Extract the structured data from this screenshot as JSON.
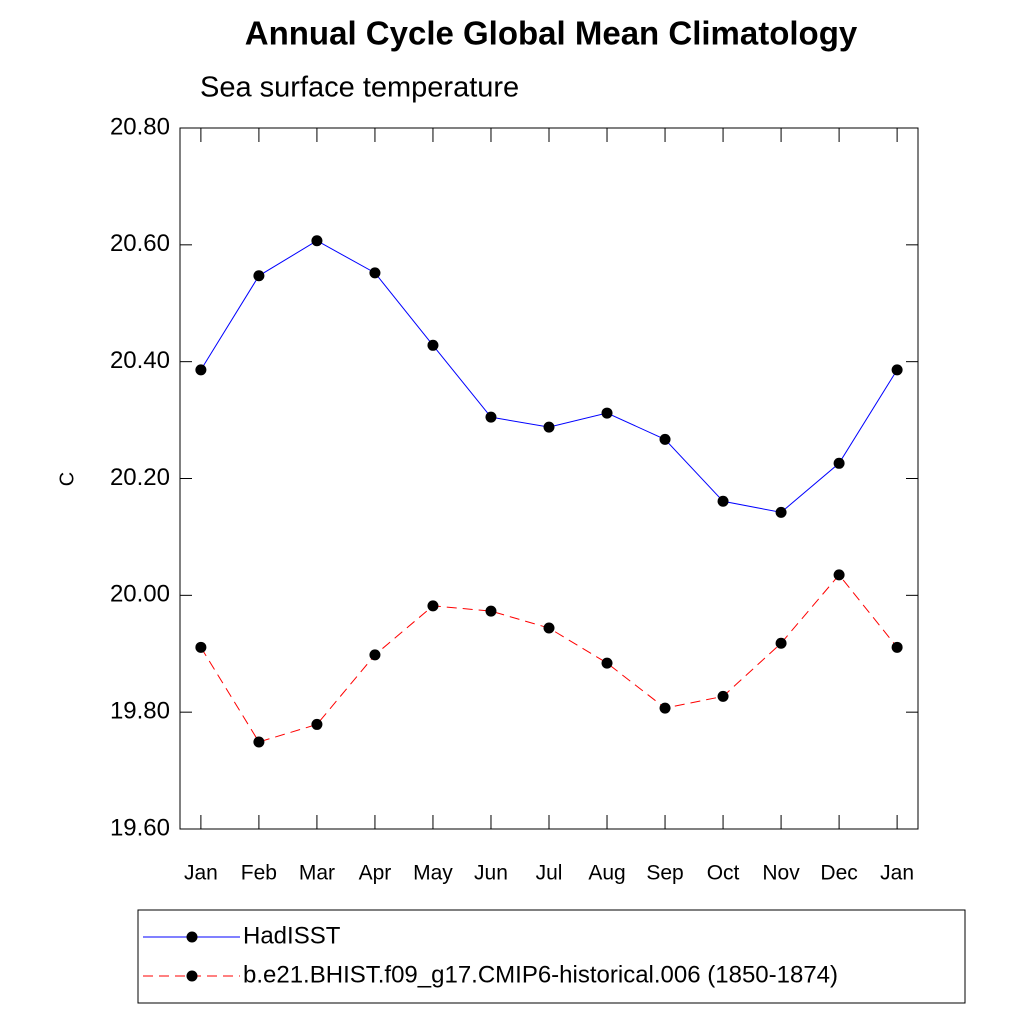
{
  "chart_data": {
    "type": "line",
    "title": "Annual Cycle Global Mean Climatology",
    "subtitle": "Sea surface temperature",
    "y_label": "C",
    "categories": [
      "Jan",
      "Feb",
      "Mar",
      "Apr",
      "May",
      "Jun",
      "Jul",
      "Aug",
      "Sep",
      "Oct",
      "Nov",
      "Dec",
      "Jan"
    ],
    "ylim": [
      19.6,
      20.8
    ],
    "yticks": [
      {
        "value": 19.6,
        "label": "19.60"
      },
      {
        "value": 19.8,
        "label": "19.80"
      },
      {
        "value": 20.0,
        "label": "20.00"
      },
      {
        "value": 20.2,
        "label": "20.20"
      },
      {
        "value": 20.4,
        "label": "20.40"
      },
      {
        "value": 20.6,
        "label": "20.60"
      },
      {
        "value": 20.8,
        "label": "20.80"
      }
    ],
    "series": [
      {
        "name": "HadISST",
        "color": "#0000ff",
        "line_style": "solid",
        "values": [
          20.386,
          20.547,
          20.607,
          20.552,
          20.428,
          20.305,
          20.288,
          20.312,
          20.267,
          20.161,
          20.142,
          20.226,
          20.386
        ]
      },
      {
        "name": "b.e21.BHIST.f09_g17.CMIP6-historical.006 (1850-1874)",
        "color": "#ff0000",
        "line_style": "dashed",
        "values": [
          19.911,
          19.749,
          19.779,
          19.898,
          19.982,
          19.973,
          19.944,
          19.884,
          19.807,
          19.827,
          19.918,
          20.035,
          19.911
        ]
      }
    ]
  }
}
